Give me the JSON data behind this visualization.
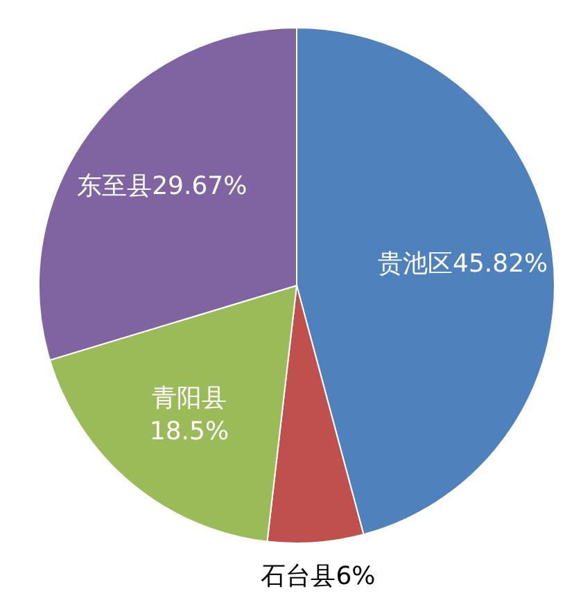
{
  "chart_data": {
    "type": "pie",
    "categories": [
      "贵池区",
      "石台县",
      "青阳县",
      "东至县"
    ],
    "values": [
      45.82,
      6,
      18.5,
      29.67
    ],
    "value_labels": [
      "45.82%",
      "6%",
      "18.5%",
      "29.67%"
    ],
    "colors": [
      "#4f81bd",
      "#c0504d",
      "#9bbb59",
      "#8064a2"
    ]
  }
}
